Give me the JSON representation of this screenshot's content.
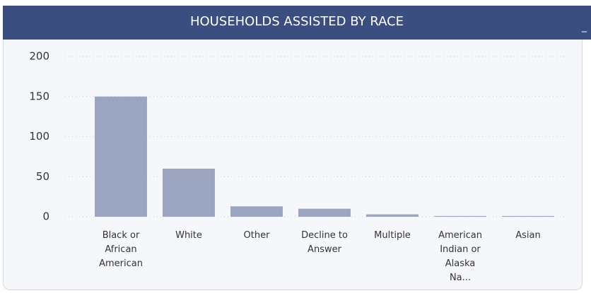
{
  "chart_data": {
    "type": "bar",
    "title": "HOUSEHOLDS ASSISTED BY RACE",
    "minimize_label": "_",
    "categories": [
      "Black or African American",
      "White",
      "Other",
      "Decline to Answer",
      "Multiple",
      "American Indian or Alaska Na...",
      "Asian"
    ],
    "values": [
      150,
      60,
      13,
      10,
      3,
      1,
      1
    ],
    "color": "#9ba5bf",
    "ylim": [
      0,
      200
    ],
    "yticks": [
      0,
      50,
      100,
      150,
      200
    ],
    "grid": true
  }
}
